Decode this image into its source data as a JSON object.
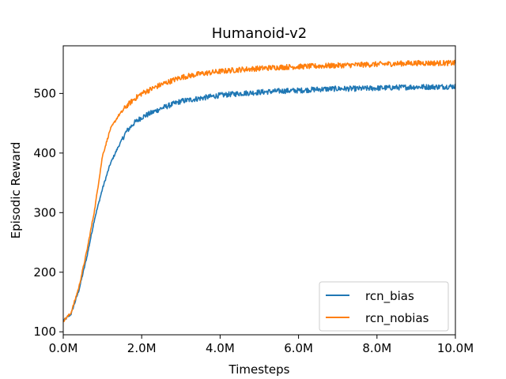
{
  "chart_data": {
    "type": "line",
    "title": "Humanoid-v2",
    "xlabel": "Timesteps",
    "ylabel": "Episodic Reward",
    "xlim": [
      0,
      10000000
    ],
    "ylim": [
      95,
      580
    ],
    "xticks": [
      0,
      2000000,
      4000000,
      6000000,
      8000000,
      10000000
    ],
    "xtick_labels": [
      "0.0M",
      "2.0M",
      "4.0M",
      "6.0M",
      "8.0M",
      "10.0M"
    ],
    "yticks": [
      100,
      200,
      300,
      400,
      500
    ],
    "ytick_labels": [
      "100",
      "200",
      "300",
      "400",
      "500"
    ],
    "grid": false,
    "legend_position": "bottom-right",
    "series": [
      {
        "name": "rcn_bias",
        "color": "#1f77b4",
        "x": [
          0,
          200000,
          400000,
          600000,
          800000,
          1000000,
          1200000,
          1400000,
          1600000,
          1800000,
          2000000,
          2500000,
          3000000,
          3500000,
          4000000,
          4500000,
          5000000,
          5500000,
          6000000,
          6500000,
          7000000,
          7500000,
          8000000,
          8500000,
          9000000,
          9500000,
          10000000
        ],
        "y": [
          118,
          130,
          170,
          225,
          290,
          340,
          382,
          410,
          435,
          450,
          460,
          475,
          487,
          492,
          497,
          500,
          502,
          504,
          505,
          507,
          508,
          508,
          509,
          510,
          511,
          511,
          512
        ]
      },
      {
        "name": "rcn_nobias",
        "color": "#ff7f0e",
        "x": [
          0,
          200000,
          400000,
          600000,
          800000,
          1000000,
          1200000,
          1400000,
          1600000,
          1800000,
          2000000,
          2500000,
          3000000,
          3500000,
          4000000,
          4500000,
          5000000,
          5500000,
          6000000,
          6500000,
          7000000,
          7500000,
          8000000,
          8500000,
          9000000,
          9500000,
          10000000
        ],
        "y": [
          118,
          132,
          175,
          235,
          305,
          395,
          440,
          462,
          478,
          490,
          500,
          515,
          527,
          533,
          537,
          540,
          542,
          544,
          545,
          546,
          547,
          548,
          549,
          550,
          551,
          551,
          551
        ]
      }
    ]
  }
}
